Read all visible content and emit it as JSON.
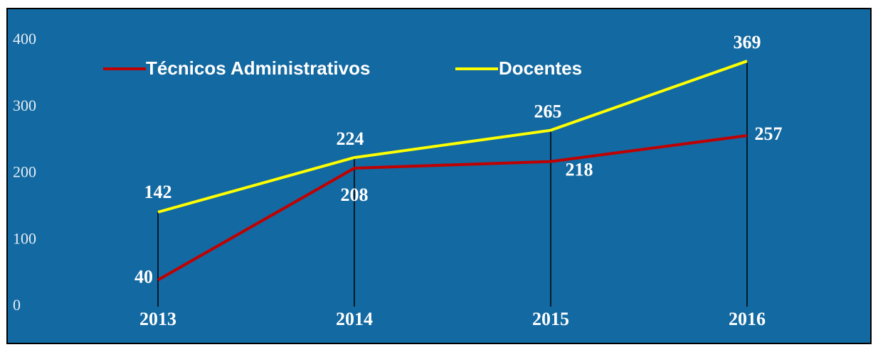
{
  "chart_data": {
    "type": "line",
    "categories": [
      "2013",
      "2014",
      "2015",
      "2016"
    ],
    "series": [
      {
        "name": "Técnicos Administrativos",
        "color": "#c00000",
        "values": [
          40,
          208,
          218,
          257
        ]
      },
      {
        "name": "Docentes",
        "color": "#ffff00",
        "values": [
          142,
          224,
          265,
          369
        ]
      }
    ],
    "ylim": [
      0,
      400
    ],
    "yticks": [
      0,
      100,
      200,
      300,
      400
    ],
    "legend": "upper left",
    "drop_lines": true,
    "background": "#1369a1"
  }
}
